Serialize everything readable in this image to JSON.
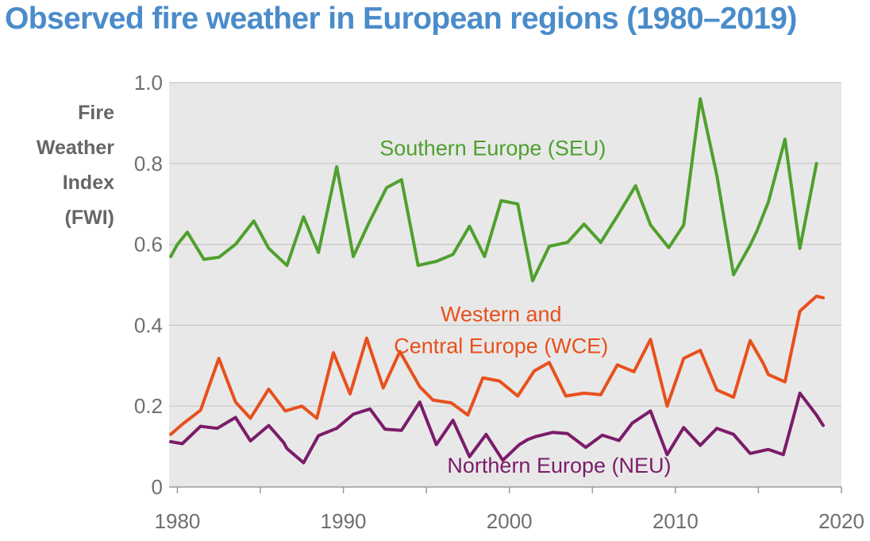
{
  "colors": {
    "title": "#4a8ccb",
    "axis_text": "#6f6f6f",
    "ylabel": "#666666",
    "plot_bg": "#e8e8e8",
    "grid": "#c8c8c8",
    "seu": "#4fa02e",
    "wce": "#e8501c",
    "neu": "#7b1c6a"
  },
  "chart_data": {
    "type": "line",
    "title": "Observed fire weather in European regions (1980–2019)",
    "ylabel_lines": [
      "Fire",
      "Weather",
      "Index",
      "(FWI)"
    ],
    "xlim": [
      1979.5,
      2020
    ],
    "ylim": [
      0,
      1.0
    ],
    "x_ticks": [
      1980,
      1990,
      2000,
      2010,
      2020
    ],
    "y_ticks": [
      {
        "value": 0,
        "label": "0"
      },
      {
        "value": 0.2,
        "label": "0.2"
      },
      {
        "value": 0.4,
        "label": "0.4"
      },
      {
        "value": 0.6,
        "label": "0.6"
      },
      {
        "value": 0.8,
        "label": "0.8"
      },
      {
        "value": 1.0,
        "label": "1.0"
      }
    ],
    "grid": true,
    "series": [
      {
        "id": "seu",
        "name": "Southern Europe (SEU)",
        "label_lines": [
          "Southern Europe (SEU)"
        ],
        "label_pos": {
          "x": 1999.0,
          "y": 0.82
        },
        "color": "#4fa02e",
        "points": [
          [
            1979.6,
            0.57
          ],
          [
            1980,
            0.6
          ],
          [
            1980.6,
            0.63
          ],
          [
            1981.6,
            0.563
          ],
          [
            1982.5,
            0.568
          ],
          [
            1983.5,
            0.6
          ],
          [
            1984.6,
            0.658
          ],
          [
            1985.5,
            0.59
          ],
          [
            1986.6,
            0.548
          ],
          [
            1987.6,
            0.668
          ],
          [
            1988.5,
            0.58
          ],
          [
            1989.6,
            0.792
          ],
          [
            1990.6,
            0.57
          ],
          [
            1991.5,
            0.65
          ],
          [
            1992.6,
            0.74
          ],
          [
            1993.5,
            0.76
          ],
          [
            1994.5,
            0.548
          ],
          [
            1995.6,
            0.558
          ],
          [
            1996.6,
            0.575
          ],
          [
            1997.6,
            0.645
          ],
          [
            1998.5,
            0.57
          ],
          [
            1999.5,
            0.708
          ],
          [
            2000.5,
            0.7
          ],
          [
            2001.4,
            0.51
          ],
          [
            2002.4,
            0.595
          ],
          [
            2003.5,
            0.605
          ],
          [
            2004.5,
            0.65
          ],
          [
            2005.5,
            0.605
          ],
          [
            2006.5,
            0.67
          ],
          [
            2007.6,
            0.745
          ],
          [
            2008.5,
            0.648
          ],
          [
            2009.6,
            0.592
          ],
          [
            2010.5,
            0.648
          ],
          [
            2011.5,
            0.96
          ],
          [
            2012.5,
            0.77
          ],
          [
            2013.5,
            0.525
          ],
          [
            2014.5,
            0.598
          ],
          [
            2014.9,
            0.632
          ],
          [
            2015.6,
            0.705
          ],
          [
            2016.6,
            0.86
          ],
          [
            2017.5,
            0.59
          ],
          [
            2018.5,
            0.8
          ]
        ]
      },
      {
        "id": "wce",
        "name": "Western and Central Europe (WCE)",
        "label_lines": [
          "Western and",
          "Central Europe (WCE)"
        ],
        "label_pos": {
          "x": 1999.5,
          "y": 0.41
        },
        "color": "#e8501c",
        "points": [
          [
            1979.6,
            0.13
          ],
          [
            1980.3,
            0.155
          ],
          [
            1981.4,
            0.19
          ],
          [
            1982.5,
            0.318
          ],
          [
            1983.5,
            0.21
          ],
          [
            1984.4,
            0.17
          ],
          [
            1985.5,
            0.242
          ],
          [
            1986.5,
            0.188
          ],
          [
            1987.5,
            0.2
          ],
          [
            1988.4,
            0.17
          ],
          [
            1989.4,
            0.332
          ],
          [
            1990.4,
            0.23
          ],
          [
            1991.4,
            0.368
          ],
          [
            1992.4,
            0.245
          ],
          [
            1993.4,
            0.335
          ],
          [
            1994.3,
            0.27
          ],
          [
            1994.6,
            0.248
          ],
          [
            1995.4,
            0.215
          ],
          [
            1996.5,
            0.208
          ],
          [
            1997.5,
            0.178
          ],
          [
            1998.4,
            0.27
          ],
          [
            1999.4,
            0.262
          ],
          [
            2000.5,
            0.225
          ],
          [
            2001.5,
            0.287
          ],
          [
            2002.4,
            0.308
          ],
          [
            2003.4,
            0.225
          ],
          [
            2004.5,
            0.232
          ],
          [
            2005.5,
            0.228
          ],
          [
            2006.5,
            0.302
          ],
          [
            2007.5,
            0.285
          ],
          [
            2008.5,
            0.365
          ],
          [
            2009.5,
            0.2
          ],
          [
            2010.5,
            0.318
          ],
          [
            2011.5,
            0.338
          ],
          [
            2012.5,
            0.24
          ],
          [
            2013.5,
            0.222
          ],
          [
            2014.5,
            0.362
          ],
          [
            2015.3,
            0.305
          ],
          [
            2015.6,
            0.278
          ],
          [
            2016.6,
            0.26
          ],
          [
            2017.5,
            0.435
          ],
          [
            2018.5,
            0.472
          ],
          [
            2018.9,
            0.468
          ]
        ]
      },
      {
        "id": "neu",
        "name": "Northern Europe (NEU)",
        "label_lines": [
          "Northern Europe (NEU)"
        ],
        "label_pos": {
          "x": 2003.0,
          "y": 0.035
        },
        "color": "#7b1c6a",
        "points": [
          [
            1979.6,
            0.112
          ],
          [
            1980.3,
            0.107
          ],
          [
            1981.4,
            0.15
          ],
          [
            1982.4,
            0.145
          ],
          [
            1983.5,
            0.172
          ],
          [
            1984.4,
            0.114
          ],
          [
            1985.5,
            0.152
          ],
          [
            1986.4,
            0.11
          ],
          [
            1986.6,
            0.095
          ],
          [
            1987.6,
            0.06
          ],
          [
            1988.5,
            0.127
          ],
          [
            1989.6,
            0.145
          ],
          [
            1990.6,
            0.18
          ],
          [
            1991.6,
            0.193
          ],
          [
            1992.5,
            0.143
          ],
          [
            1993.5,
            0.14
          ],
          [
            1994.6,
            0.21
          ],
          [
            1995.6,
            0.105
          ],
          [
            1996.6,
            0.165
          ],
          [
            1997.6,
            0.075
          ],
          [
            1998.6,
            0.13
          ],
          [
            1999.6,
            0.066
          ],
          [
            2000.6,
            0.105
          ],
          [
            2001.1,
            0.117
          ],
          [
            2001.6,
            0.125
          ],
          [
            2002.6,
            0.135
          ],
          [
            2003.5,
            0.132
          ],
          [
            2004.6,
            0.098
          ],
          [
            2005.6,
            0.128
          ],
          [
            2006.6,
            0.115
          ],
          [
            2007.4,
            0.158
          ],
          [
            2008.5,
            0.188
          ],
          [
            2009.5,
            0.08
          ],
          [
            2010.5,
            0.147
          ],
          [
            2011.5,
            0.103
          ],
          [
            2012.5,
            0.145
          ],
          [
            2013.5,
            0.13
          ],
          [
            2014.5,
            0.083
          ],
          [
            2015.6,
            0.093
          ],
          [
            2016.5,
            0.08
          ],
          [
            2017.5,
            0.232
          ],
          [
            2018.5,
            0.178
          ],
          [
            2018.9,
            0.152
          ]
        ]
      }
    ]
  }
}
